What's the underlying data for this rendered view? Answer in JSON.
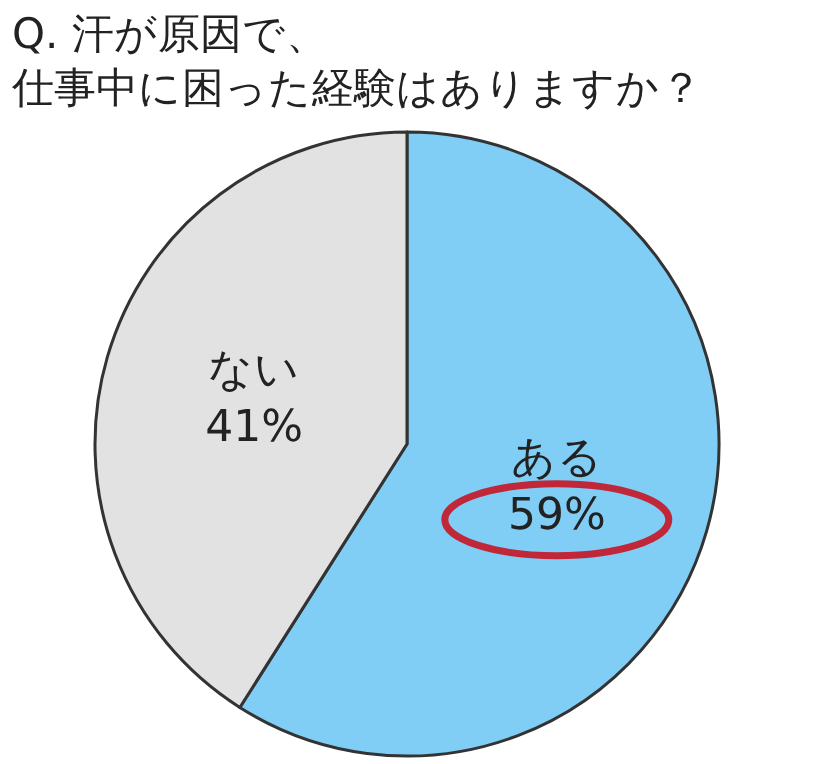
{
  "chart_data": {
    "type": "pie",
    "title": "Q. 汗が原因で、仕事中に困った経験はありますか？",
    "categories": [
      "ある",
      "ない"
    ],
    "values": [
      59,
      41
    ],
    "value_labels": [
      "59%",
      "41%"
    ],
    "colors": [
      "#80cef5",
      "#e2e2e2"
    ],
    "legend": false
  }
}
